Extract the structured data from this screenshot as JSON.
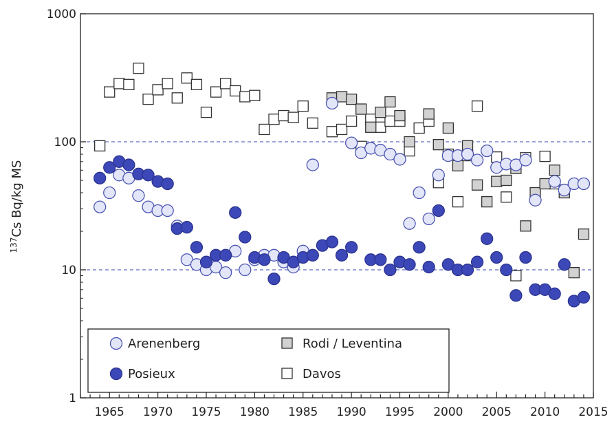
{
  "chart_data": {
    "type": "scatter",
    "title": "",
    "xlabel": "",
    "ylabel": {
      "superscript": "137",
      "text": "Cs Bq/kg MS"
    },
    "x_axis": {
      "range": [
        1962,
        2015
      ],
      "ticks": [
        1965,
        1970,
        1975,
        1980,
        1985,
        1990,
        1995,
        2000,
        2005,
        2010,
        2015
      ],
      "tick_labels": [
        "1965",
        "1970",
        "1975",
        "1980",
        "1985",
        "1990",
        "1995",
        "2000",
        "2005",
        "2010",
        "2015"
      ]
    },
    "y_axis": {
      "scale": "log",
      "range": [
        1,
        1000
      ],
      "ticks": [
        1,
        10,
        100,
        1000
      ],
      "tick_labels": [
        "1",
        "10",
        "100",
        "1000"
      ],
      "reference_lines": [
        10,
        100
      ]
    },
    "grid": false,
    "legend": {
      "placement": "bottom-left",
      "entries": [
        "Arenenberg",
        "Posieux",
        "Rodi / Leventina",
        "Davos"
      ]
    },
    "series": [
      {
        "name": "Arenenberg",
        "marker": "circle",
        "fill": "#e3e6f8",
        "stroke": "#4d56b4",
        "points": [
          [
            1964,
            31
          ],
          [
            1965,
            40
          ],
          [
            1966,
            55
          ],
          [
            1967,
            52
          ],
          [
            1968,
            38
          ],
          [
            1969,
            31
          ],
          [
            1970,
            29
          ],
          [
            1971,
            29
          ],
          [
            1972,
            22
          ],
          [
            1973,
            12
          ],
          [
            1974,
            11
          ],
          [
            1975,
            10
          ],
          [
            1976,
            10.5
          ],
          [
            1977,
            9.5
          ],
          [
            1978,
            14
          ],
          [
            1979,
            10
          ],
          [
            1980,
            12
          ],
          [
            1981,
            13
          ],
          [
            1982,
            13
          ],
          [
            1983,
            11.5
          ],
          [
            1984,
            10.5
          ],
          [
            1985,
            14
          ],
          [
            1986,
            66
          ],
          [
            1988,
            200
          ],
          [
            1990,
            98
          ],
          [
            1991,
            82
          ],
          [
            1992,
            89
          ],
          [
            1993,
            86
          ],
          [
            1994,
            80
          ],
          [
            1995,
            73
          ],
          [
            1996,
            23
          ],
          [
            1997,
            40
          ],
          [
            1998,
            25
          ],
          [
            1999,
            55
          ],
          [
            2000,
            78
          ],
          [
            2001,
            78
          ],
          [
            2002,
            80
          ],
          [
            2003,
            72
          ],
          [
            2004,
            85
          ],
          [
            2005,
            63
          ],
          [
            2006,
            67
          ],
          [
            2007,
            66
          ],
          [
            2008,
            72
          ],
          [
            2009,
            35
          ],
          [
            2011,
            49
          ],
          [
            2012,
            42
          ],
          [
            2013,
            47
          ],
          [
            2014,
            47
          ]
        ]
      },
      {
        "name": "Posieux",
        "marker": "circle",
        "fill": "#3d48b8",
        "stroke": "#2b3390",
        "points": [
          [
            1964,
            52
          ],
          [
            1965,
            63
          ],
          [
            1966,
            70
          ],
          [
            1967,
            66
          ],
          [
            1968,
            56
          ],
          [
            1969,
            55
          ],
          [
            1970,
            49
          ],
          [
            1971,
            47
          ],
          [
            1972,
            21
          ],
          [
            1973,
            21.5
          ],
          [
            1974,
            15
          ],
          [
            1975,
            11.5
          ],
          [
            1976,
            13
          ],
          [
            1977,
            13
          ],
          [
            1978,
            28
          ],
          [
            1979,
            18
          ],
          [
            1980,
            12.5
          ],
          [
            1981,
            12
          ],
          [
            1982,
            8.5
          ],
          [
            1983,
            12.5
          ],
          [
            1984,
            11.5
          ],
          [
            1985,
            12.5
          ],
          [
            1986,
            13
          ],
          [
            1987,
            15.5
          ],
          [
            1988,
            16.5
          ],
          [
            1989,
            13
          ],
          [
            1990,
            15
          ],
          [
            1992,
            12
          ],
          [
            1993,
            12
          ],
          [
            1994,
            10
          ],
          [
            1995,
            11.5
          ],
          [
            1996,
            11
          ],
          [
            1997,
            15
          ],
          [
            1998,
            10.5
          ],
          [
            1999,
            29
          ],
          [
            2000,
            11
          ],
          [
            2001,
            10
          ],
          [
            2002,
            10
          ],
          [
            2003,
            11.5
          ],
          [
            2004,
            17.5
          ],
          [
            2005,
            12.5
          ],
          [
            2006,
            10
          ],
          [
            2007,
            6.3
          ],
          [
            2008,
            12.5
          ],
          [
            2009,
            7
          ],
          [
            2010,
            7
          ],
          [
            2011,
            6.5
          ],
          [
            2012,
            11
          ],
          [
            2013,
            5.7
          ],
          [
            2014,
            6.1
          ]
        ]
      },
      {
        "name": "Rodi / Leventina",
        "marker": "square",
        "fill": "#d2d2d2",
        "stroke": "#333333",
        "points": [
          [
            1988,
            220
          ],
          [
            1989,
            225
          ],
          [
            1990,
            215
          ],
          [
            1991,
            180
          ],
          [
            1992,
            130
          ],
          [
            1993,
            170
          ],
          [
            1994,
            205
          ],
          [
            1995,
            160
          ],
          [
            1996,
            100
          ],
          [
            1998,
            165
          ],
          [
            1999,
            95
          ],
          [
            2000,
            128
          ],
          [
            2001,
            65
          ],
          [
            2002,
            93
          ],
          [
            2003,
            46
          ],
          [
            2004,
            34
          ],
          [
            2005,
            49
          ],
          [
            2006,
            50
          ],
          [
            2007,
            62
          ],
          [
            2008,
            22
          ],
          [
            2009,
            40
          ],
          [
            2010,
            47
          ],
          [
            2011,
            60
          ],
          [
            2012,
            40
          ],
          [
            2013,
            9.5
          ],
          [
            2014,
            19
          ]
        ]
      },
      {
        "name": "Davos",
        "marker": "square",
        "fill": "#ffffff",
        "stroke": "#333333",
        "points": [
          [
            1964,
            93
          ],
          [
            1965,
            245
          ],
          [
            1966,
            285
          ],
          [
            1967,
            280
          ],
          [
            1968,
            375
          ],
          [
            1969,
            215
          ],
          [
            1970,
            255
          ],
          [
            1971,
            285
          ],
          [
            1972,
            220
          ],
          [
            1973,
            315
          ],
          [
            1974,
            280
          ],
          [
            1975,
            170
          ],
          [
            1976,
            245
          ],
          [
            1977,
            285
          ],
          [
            1978,
            250
          ],
          [
            1979,
            225
          ],
          [
            1980,
            230
          ],
          [
            1981,
            125
          ],
          [
            1982,
            150
          ],
          [
            1983,
            160
          ],
          [
            1984,
            155
          ],
          [
            1985,
            190
          ],
          [
            1986,
            140
          ],
          [
            1988,
            120
          ],
          [
            1989,
            125
          ],
          [
            1990,
            145
          ],
          [
            1991,
            92
          ],
          [
            1992,
            150
          ],
          [
            1993,
            130
          ],
          [
            1994,
            145
          ],
          [
            1995,
            145
          ],
          [
            1996,
            85
          ],
          [
            1997,
            128
          ],
          [
            1998,
            145
          ],
          [
            1999,
            48
          ],
          [
            2000,
            80
          ],
          [
            2001,
            34
          ],
          [
            2002,
            78
          ],
          [
            2003,
            190
          ],
          [
            2005,
            76
          ],
          [
            2006,
            37
          ],
          [
            2007,
            9
          ],
          [
            2008,
            75
          ],
          [
            2010,
            77
          ],
          [
            2011,
            47
          ],
          [
            2012,
            42
          ]
        ]
      }
    ]
  }
}
